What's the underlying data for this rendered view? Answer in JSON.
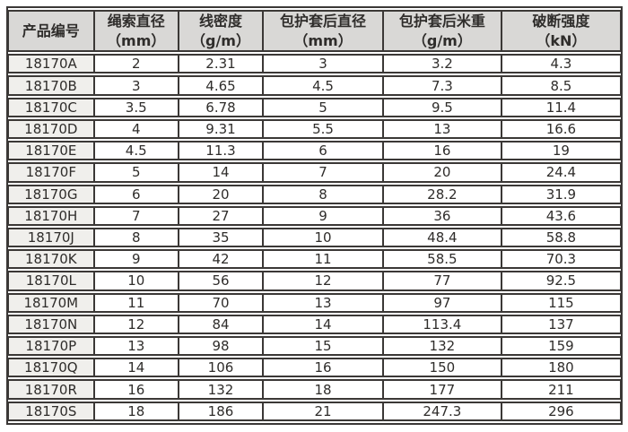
{
  "colors": {
    "border": "#3b3836",
    "header_bg": "#d9d8d6",
    "first_col_bg": "#f0efec",
    "text": "#2f2d2b",
    "page_bg": "#ffffff"
  },
  "table": {
    "columns": [
      {
        "label": "产品编号",
        "unit": ""
      },
      {
        "label": "绳索直径",
        "unit": "（mm）"
      },
      {
        "label": "线密度",
        "unit": "（g/m）"
      },
      {
        "label": "包护套后直径",
        "unit": "（mm）"
      },
      {
        "label": "包护套后米重",
        "unit": "（g/m）"
      },
      {
        "label": "破断强度",
        "unit": "（kN）"
      }
    ],
    "rows": [
      [
        "18170A",
        "2",
        "2.31",
        "3",
        "3.2",
        "4.3"
      ],
      [
        "18170B",
        "3",
        "4.65",
        "4.5",
        "7.3",
        "8.5"
      ],
      [
        "18170C",
        "3.5",
        "6.78",
        "5",
        "9.5",
        "11.4"
      ],
      [
        "18170D",
        "4",
        "9.31",
        "5.5",
        "13",
        "16.6"
      ],
      [
        "18170E",
        "4.5",
        "11.3",
        "6",
        "16",
        "19"
      ],
      [
        "18170F",
        "5",
        "14",
        "7",
        "20",
        "24.4"
      ],
      [
        "18170G",
        "6",
        "20",
        "8",
        "28.2",
        "31.9"
      ],
      [
        "18170H",
        "7",
        "27",
        "9",
        "36",
        "43.6"
      ],
      [
        "18170J",
        "8",
        "35",
        "10",
        "48.4",
        "58.8"
      ],
      [
        "18170K",
        "9",
        "42",
        "11",
        "58.5",
        "70.3"
      ],
      [
        "18170L",
        "10",
        "56",
        "12",
        "77",
        "92.5"
      ],
      [
        "18170M",
        "11",
        "70",
        "13",
        "97",
        "115"
      ],
      [
        "18170N",
        "12",
        "84",
        "14",
        "113.4",
        "137"
      ],
      [
        "18170P",
        "13",
        "98",
        "15",
        "132",
        "159"
      ],
      [
        "18170Q",
        "14",
        "106",
        "16",
        "150",
        "180"
      ],
      [
        "18170R",
        "16",
        "132",
        "18",
        "177",
        "211"
      ],
      [
        "18170S",
        "18",
        "186",
        "21",
        "247.3",
        "296"
      ]
    ]
  }
}
